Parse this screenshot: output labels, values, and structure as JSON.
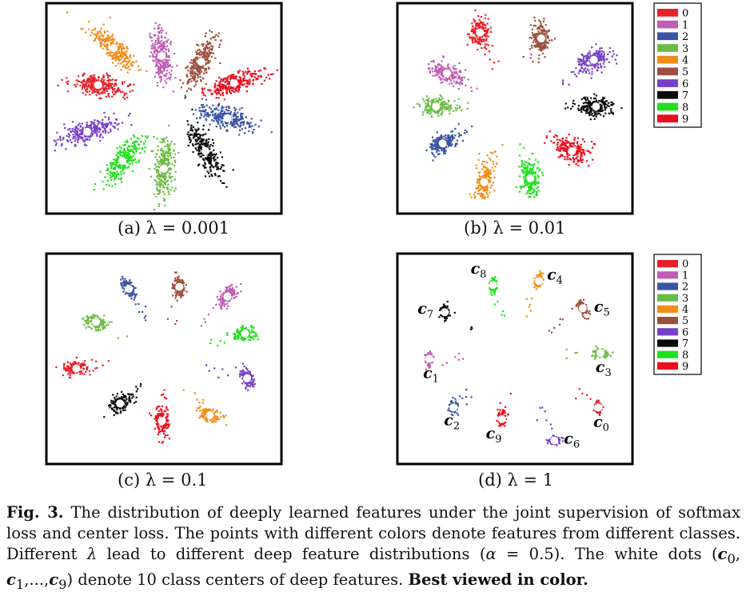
{
  "figure": {
    "label": "Fig. 3.",
    "caption_parts": [
      "The distribution of deeply learned features under the joint supervision of softmax loss and center loss. The points with different colors denote features from different classes. Different ",
      "λ",
      " lead to different deep feature distributions (",
      "α",
      " = 0.5). The white dots (",
      "c",
      "0",
      ", ",
      "c",
      "1",
      ",...,",
      "c",
      "9",
      ") denote 10 class centers of deep features. ",
      "Best viewed in color."
    ]
  },
  "colors": {
    "0": "#e8202a",
    "1": "#bf5eb4",
    "2": "#3a54a4",
    "3": "#6cbb45",
    "4": "#f28c1a",
    "5": "#9c4f3e",
    "6": "#7540c6",
    "7": "#0a0a0a",
    "8": "#1fe01c",
    "9": "#ee0c1c",
    "center": "#ffffff"
  },
  "chart_data": [
    {
      "type": "scatter",
      "subcaption": "(a)  λ = 0.001",
      "lambda": 0.001,
      "legend": null,
      "clusters": [
        {
          "cls": "4",
          "x": 0.27,
          "y": 0.19,
          "spread": 0.12,
          "ang": 40
        },
        {
          "cls": "1",
          "x": 0.49,
          "y": 0.23,
          "spread": 0.11,
          "ang": 80
        },
        {
          "cls": "5",
          "x": 0.67,
          "y": 0.26,
          "spread": 0.11,
          "ang": 115
        },
        {
          "cls": "9",
          "x": 0.82,
          "y": 0.37,
          "spread": 0.12,
          "ang": 165
        },
        {
          "cls": "2",
          "x": 0.79,
          "y": 0.55,
          "spread": 0.12,
          "ang": 15
        },
        {
          "cls": "7",
          "x": 0.69,
          "y": 0.72,
          "spread": 0.12,
          "ang": 60
        },
        {
          "cls": "3",
          "x": 0.5,
          "y": 0.81,
          "spread": 0.12,
          "ang": 95
        },
        {
          "cls": "8",
          "x": 0.31,
          "y": 0.77,
          "spread": 0.12,
          "ang": 130
        },
        {
          "cls": "6",
          "x": 0.15,
          "y": 0.62,
          "spread": 0.12,
          "ang": 160
        },
        {
          "cls": "0",
          "x": 0.2,
          "y": 0.38,
          "spread": 0.12,
          "ang": 5
        }
      ],
      "center_labels": []
    },
    {
      "type": "scatter",
      "subcaption": "(b)  λ = 0.01",
      "lambda": 0.01,
      "legend": {
        "placement": "right",
        "entries": [
          "0",
          "1",
          "2",
          "3",
          "4",
          "5",
          "6",
          "7",
          "8",
          "9"
        ]
      },
      "clusters": [
        {
          "cls": "0",
          "x": 0.34,
          "y": 0.11,
          "spread": 0.06,
          "ang": 95
        },
        {
          "cls": "5",
          "x": 0.62,
          "y": 0.14,
          "spread": 0.06,
          "ang": 85
        },
        {
          "cls": "6",
          "x": 0.86,
          "y": 0.25,
          "spread": 0.07,
          "ang": 160
        },
        {
          "cls": "1",
          "x": 0.19,
          "y": 0.32,
          "spread": 0.07,
          "ang": 30
        },
        {
          "cls": "7",
          "x": 0.87,
          "y": 0.49,
          "spread": 0.07,
          "ang": 0
        },
        {
          "cls": "3",
          "x": 0.14,
          "y": 0.49,
          "spread": 0.06,
          "ang": 0
        },
        {
          "cls": "2",
          "x": 0.17,
          "y": 0.68,
          "spread": 0.06,
          "ang": 150
        },
        {
          "cls": "9",
          "x": 0.76,
          "y": 0.72,
          "spread": 0.08,
          "ang": 20
        },
        {
          "cls": "8",
          "x": 0.57,
          "y": 0.86,
          "spread": 0.07,
          "ang": 80
        },
        {
          "cls": "4",
          "x": 0.36,
          "y": 0.88,
          "spread": 0.07,
          "ang": 100
        }
      ],
      "center_labels": []
    },
    {
      "type": "scatter",
      "subcaption": "(c)  λ = 0.1",
      "lambda": 0.1,
      "legend": null,
      "clusters": [
        {
          "cls": "2",
          "x": 0.34,
          "y": 0.14,
          "spread": 0.04,
          "ang": 60
        },
        {
          "cls": "5",
          "x": 0.57,
          "y": 0.13,
          "spread": 0.04,
          "ang": 85
        },
        {
          "cls": "1",
          "x": 0.79,
          "y": 0.18,
          "spread": 0.05,
          "ang": 130
        },
        {
          "cls": "3",
          "x": 0.19,
          "y": 0.31,
          "spread": 0.045,
          "ang": 20
        },
        {
          "cls": "8",
          "x": 0.87,
          "y": 0.37,
          "spread": 0.05,
          "ang": 0
        },
        {
          "cls": "0",
          "x": 0.1,
          "y": 0.55,
          "spread": 0.05,
          "ang": 0
        },
        {
          "cls": "6",
          "x": 0.88,
          "y": 0.6,
          "spread": 0.045,
          "ang": 70
        },
        {
          "cls": "7",
          "x": 0.3,
          "y": 0.73,
          "spread": 0.055,
          "ang": 150
        },
        {
          "cls": "9",
          "x": 0.49,
          "y": 0.82,
          "spread": 0.055,
          "ang": 90
        },
        {
          "cls": "4",
          "x": 0.71,
          "y": 0.79,
          "spread": 0.045,
          "ang": 20
        }
      ],
      "center_labels": []
    },
    {
      "type": "scatter",
      "subcaption": "(d)  λ = 1",
      "lambda": 1,
      "legend": {
        "placement": "right",
        "entries": [
          "0",
          "1",
          "2",
          "3",
          "4",
          "5",
          "6",
          "7",
          "8",
          "9"
        ]
      },
      "clusters": [
        {
          "cls": "8",
          "x": 0.4,
          "y": 0.12,
          "spread": 0.028,
          "ang": 90
        },
        {
          "cls": "4",
          "x": 0.61,
          "y": 0.1,
          "spread": 0.028,
          "ang": 100
        },
        {
          "cls": "5",
          "x": 0.81,
          "y": 0.24,
          "spread": 0.03,
          "ang": 60
        },
        {
          "cls": "7",
          "x": 0.18,
          "y": 0.26,
          "spread": 0.03,
          "ang": 90
        },
        {
          "cls": "1",
          "x": 0.11,
          "y": 0.5,
          "spread": 0.028,
          "ang": 90
        },
        {
          "cls": "3",
          "x": 0.89,
          "y": 0.47,
          "spread": 0.03,
          "ang": 0
        },
        {
          "cls": "2",
          "x": 0.22,
          "y": 0.75,
          "spread": 0.03,
          "ang": 90
        },
        {
          "cls": "0",
          "x": 0.88,
          "y": 0.75,
          "spread": 0.026,
          "ang": 90
        },
        {
          "cls": "9",
          "x": 0.44,
          "y": 0.81,
          "spread": 0.03,
          "ang": 90
        },
        {
          "cls": "6",
          "x": 0.68,
          "y": 0.92,
          "spread": 0.026,
          "ang": 0
        }
      ],
      "center_labels": [
        {
          "base": "c",
          "sub": "8",
          "cls": "8"
        },
        {
          "base": "c",
          "sub": "4",
          "cls": "4"
        },
        {
          "base": "c",
          "sub": "5",
          "cls": "5"
        },
        {
          "base": "c",
          "sub": "7",
          "cls": "7"
        },
        {
          "base": "c",
          "sub": "1",
          "cls": "1"
        },
        {
          "base": "c",
          "sub": "3",
          "cls": "3"
        },
        {
          "base": "c",
          "sub": "2",
          "cls": "2"
        },
        {
          "base": "c",
          "sub": "0",
          "cls": "0"
        },
        {
          "base": "c",
          "sub": "9",
          "cls": "9"
        },
        {
          "base": "c",
          "sub": "6",
          "cls": "6"
        }
      ]
    }
  ]
}
